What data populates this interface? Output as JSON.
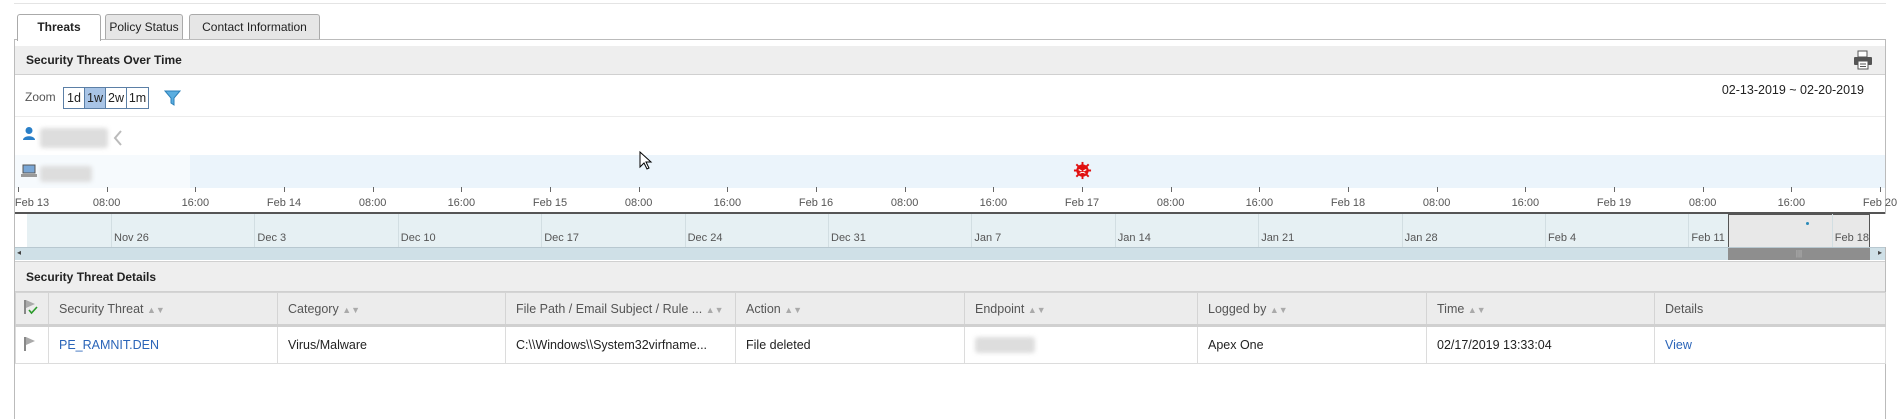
{
  "tabs": [
    {
      "label": "Threats",
      "active": true
    },
    {
      "label": "Policy Status"
    },
    {
      "label": "Contact Information"
    }
  ],
  "timeline": {
    "title": "Security Threats Over Time",
    "zoom_label": "Zoom",
    "zoom_options": [
      "1d",
      "1w",
      "2w",
      "1m"
    ],
    "zoom_selected": "1w",
    "date_range": "02-13-2019 ~ 02-20-2019",
    "axis_labels": [
      "Feb 13",
      "08:00",
      "16:00",
      "Feb 14",
      "08:00",
      "16:00",
      "Feb 15",
      "08:00",
      "16:00",
      "Feb 16",
      "08:00",
      "16:00",
      "Feb 17",
      "08:00",
      "16:00",
      "Feb 18",
      "08:00",
      "16:00",
      "Feb 19",
      "08:00",
      "16:00",
      "Feb 20"
    ],
    "navigator_labels": [
      "Nov 26",
      "Dec 3",
      "Dec 10",
      "Dec 17",
      "Dec 24",
      "Dec 31",
      "Jan 7",
      "Jan 14",
      "Jan 21",
      "Jan 28",
      "Feb 4",
      "Feb 11",
      "Feb 18"
    ],
    "threat_event_time": "Feb 17",
    "threat_color": "#e01010"
  },
  "details": {
    "title": "Security Threat Details",
    "columns": [
      "Security Threat",
      "Category",
      "File Path / Email Subject / Rule ...",
      "Action",
      "Endpoint",
      "Logged by",
      "Time",
      "Details"
    ],
    "rows": [
      {
        "threat": "PE_RAMNIT.DEN",
        "category": "Virus/Malware",
        "path": "C:\\\\Windows\\\\System32virfname...",
        "action": "File deleted",
        "logged_by": "Apex One",
        "time": "02/17/2019 13:33:04",
        "details": "View"
      }
    ]
  },
  "link_color": "#2a64b8"
}
